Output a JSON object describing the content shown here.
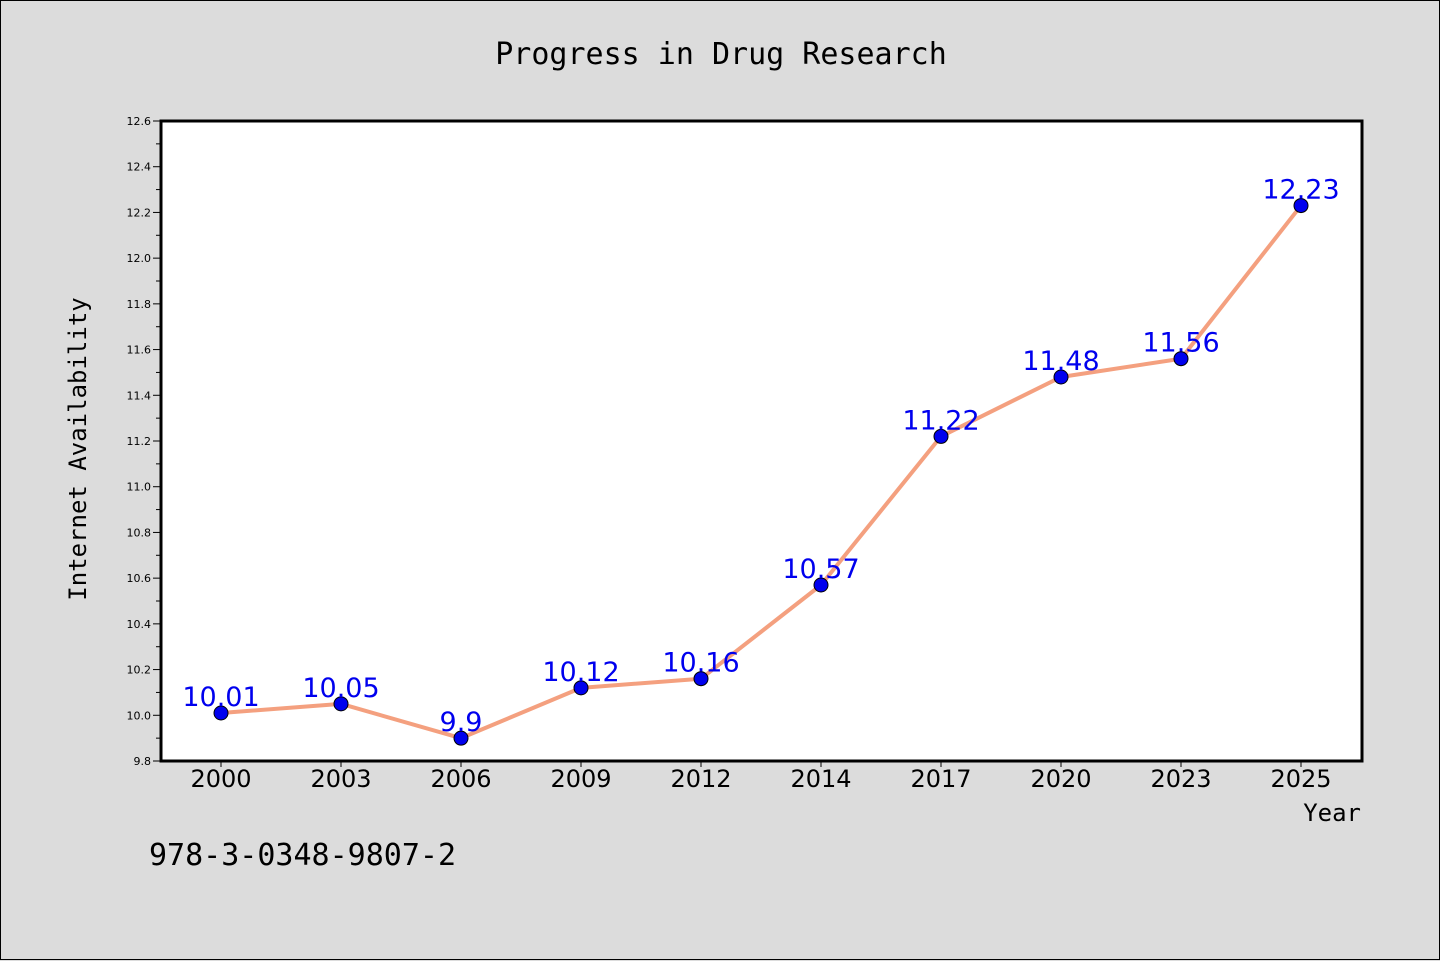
{
  "chart_data": {
    "type": "line",
    "title": "Progress in Drug Research",
    "xlabel": "Year",
    "ylabel": "Internet Availability",
    "categories": [
      "2000",
      "2003",
      "2006",
      "2009",
      "2012",
      "2014",
      "2017",
      "2020",
      "2023",
      "2025"
    ],
    "series": [
      {
        "values": [
          10.01,
          10.05,
          9.9,
          10.12,
          10.16,
          10.57,
          11.22,
          11.48,
          11.56,
          12.23
        ],
        "data_labels": [
          "10.01",
          "10.05",
          "9.9",
          "10.12",
          "10.16",
          "10.57",
          "11.22",
          "11.48",
          "11.56",
          "12.23"
        ]
      }
    ],
    "ylim": [
      9.8,
      12.6
    ],
    "yticks": [
      "9.8",
      "10.0",
      "10.2",
      "10.4",
      "10.6",
      "10.8",
      "11.0",
      "11.2",
      "11.4",
      "11.6",
      "11.8",
      "12.0",
      "12.2",
      "12.4",
      "12.6"
    ],
    "grid": false,
    "legend": "none",
    "colors": {
      "line": "#f4a07f",
      "marker": "#0000ee",
      "label": "#0000ee",
      "background": "#dcdcdc",
      "plot_area": "#ffffff"
    }
  },
  "footnote": "978-3-0348-9807-2"
}
